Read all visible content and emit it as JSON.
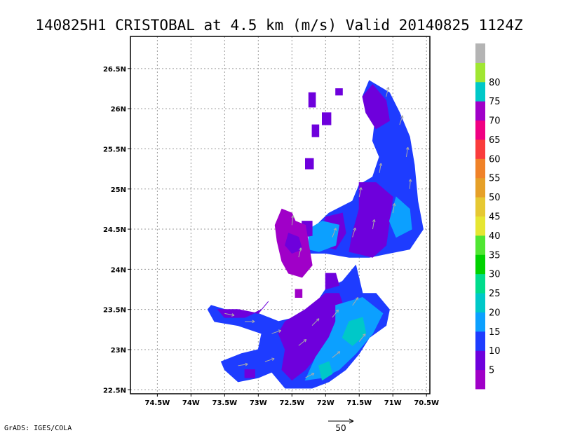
{
  "chart_data": {
    "type": "heatmap",
    "title": "140825H1 CRISTOBAL at 4.5 km (m/s) Valid 20140825 1124Z",
    "credit": "GrADS: IGES/COLA",
    "x_axis": {
      "range": [
        -74.9,
        -70.45
      ],
      "ticks": [
        {
          "value": -74.5,
          "label": "74.5W"
        },
        {
          "value": -74.0,
          "label": "74W"
        },
        {
          "value": -73.5,
          "label": "73.5W"
        },
        {
          "value": -73.0,
          "label": "73W"
        },
        {
          "value": -72.5,
          "label": "72.5W"
        },
        {
          "value": -72.0,
          "label": "72W"
        },
        {
          "value": -71.5,
          "label": "71.5W"
        },
        {
          "value": -71.0,
          "label": "71W"
        },
        {
          "value": -70.5,
          "label": "70.5W"
        }
      ]
    },
    "y_axis": {
      "range": [
        22.45,
        26.9
      ],
      "ticks": [
        {
          "value": 22.5,
          "label": "22.5N"
        },
        {
          "value": 23.0,
          "label": "23N"
        },
        {
          "value": 23.5,
          "label": "23.5N"
        },
        {
          "value": 24.0,
          "label": "24N"
        },
        {
          "value": 24.5,
          "label": "24.5N"
        },
        {
          "value": 25.0,
          "label": "25N"
        },
        {
          "value": 25.5,
          "label": "25.5N"
        },
        {
          "value": 26.0,
          "label": "26N"
        },
        {
          "value": 26.5,
          "label": "26.5N"
        }
      ]
    },
    "grid": true,
    "colorbar": {
      "colors": [
        "#a000c8",
        "#6e00dc",
        "#1e3cff",
        "#0ca0ff",
        "#00c8c8",
        "#00dc8c",
        "#00d200",
        "#50e632",
        "#e6e632",
        "#e6c832",
        "#e6a028",
        "#f08228",
        "#fa3c3c",
        "#f00082",
        "#a000c8",
        "#00c8c8",
        "#a0e632",
        "#b4b4b4"
      ],
      "labels": [
        "5",
        "10",
        "15",
        "20",
        "25",
        "30",
        "35",
        "40",
        "45",
        "50",
        "55",
        "60",
        "65",
        "70",
        "75",
        "80"
      ]
    },
    "reference_vector_label": "50",
    "regions": [
      {
        "name": "north-arc-outer",
        "level": 15,
        "pts": [
          [
            -71.35,
            26.35
          ],
          [
            -71.05,
            26.2
          ],
          [
            -70.9,
            25.95
          ],
          [
            -70.75,
            25.65
          ],
          [
            -70.68,
            25.3
          ],
          [
            -70.63,
            24.85
          ],
          [
            -70.55,
            24.5
          ],
          [
            -70.75,
            24.25
          ],
          [
            -71.05,
            24.2
          ],
          [
            -71.35,
            24.15
          ],
          [
            -71.65,
            24.15
          ],
          [
            -72.0,
            24.2
          ],
          [
            -72.25,
            24.2
          ],
          [
            -72.25,
            24.45
          ],
          [
            -72.05,
            24.62
          ],
          [
            -71.95,
            24.7
          ],
          [
            -71.6,
            24.85
          ],
          [
            -71.5,
            25.05
          ],
          [
            -71.3,
            25.15
          ],
          [
            -71.2,
            25.4
          ],
          [
            -71.3,
            25.6
          ],
          [
            -71.25,
            25.95
          ],
          [
            -71.45,
            26.15
          ]
        ]
      },
      {
        "name": "north-arc-inner",
        "level": 10,
        "pts": [
          [
            -71.3,
            26.3
          ],
          [
            -71.1,
            26.1
          ],
          [
            -71.05,
            25.85
          ],
          [
            -71.25,
            25.75
          ],
          [
            -71.4,
            25.95
          ],
          [
            -71.45,
            26.15
          ]
        ]
      },
      {
        "name": "north-core",
        "level": 10,
        "pts": [
          [
            -71.5,
            25.08
          ],
          [
            -71.25,
            25.08
          ],
          [
            -71.0,
            24.9
          ],
          [
            -71.05,
            24.6
          ],
          [
            -71.1,
            24.3
          ],
          [
            -71.3,
            24.15
          ],
          [
            -71.65,
            24.22
          ],
          [
            -71.6,
            24.45
          ],
          [
            -71.5,
            24.75
          ]
        ]
      },
      {
        "name": "north-core-2",
        "level": 10,
        "pts": [
          [
            -72.0,
            24.65
          ],
          [
            -71.75,
            24.7
          ],
          [
            -71.7,
            24.45
          ],
          [
            -71.85,
            24.25
          ],
          [
            -72.1,
            24.3
          ]
        ]
      },
      {
        "name": "north-teal",
        "level": 20,
        "pts": [
          [
            -72.25,
            24.5
          ],
          [
            -72.05,
            24.6
          ],
          [
            -71.8,
            24.55
          ],
          [
            -71.85,
            24.3
          ],
          [
            -72.1,
            24.22
          ],
          [
            -72.25,
            24.25
          ]
        ]
      },
      {
        "name": "north-teal-2",
        "level": 20,
        "pts": [
          [
            -70.95,
            24.9
          ],
          [
            -70.75,
            24.75
          ],
          [
            -70.72,
            24.5
          ],
          [
            -70.95,
            24.4
          ],
          [
            -71.05,
            24.6
          ]
        ]
      },
      {
        "name": "north-spur",
        "level": 10,
        "pts": [
          [
            -72.35,
            24.6
          ],
          [
            -72.2,
            24.6
          ],
          [
            -72.2,
            24.42
          ],
          [
            -72.35,
            24.4
          ]
        ]
      },
      {
        "name": "purple-blob",
        "level": 5,
        "pts": [
          [
            -72.65,
            24.75
          ],
          [
            -72.5,
            24.7
          ],
          [
            -72.45,
            24.6
          ],
          [
            -72.3,
            24.55
          ],
          [
            -72.25,
            24.3
          ],
          [
            -72.2,
            24.05
          ],
          [
            -72.35,
            23.9
          ],
          [
            -72.55,
            23.95
          ],
          [
            -72.65,
            24.1
          ],
          [
            -72.72,
            24.35
          ],
          [
            -72.75,
            24.55
          ]
        ]
      },
      {
        "name": "purple-inner",
        "level": 10,
        "pts": [
          [
            -72.55,
            24.45
          ],
          [
            -72.4,
            24.4
          ],
          [
            -72.35,
            24.25
          ],
          [
            -72.5,
            24.2
          ],
          [
            -72.6,
            24.3
          ]
        ]
      },
      {
        "name": "purple-tail",
        "level": 5,
        "pts": [
          [
            -72.45,
            23.65
          ],
          [
            -72.35,
            23.65
          ],
          [
            -72.35,
            23.75
          ],
          [
            -72.45,
            23.75
          ]
        ]
      },
      {
        "name": "island-1",
        "level": 10,
        "pts": [
          [
            -72.25,
            26.2
          ],
          [
            -72.15,
            26.2
          ],
          [
            -72.15,
            26.02
          ],
          [
            -72.25,
            26.02
          ]
        ]
      },
      {
        "name": "island-2",
        "level": 10,
        "pts": [
          [
            -71.85,
            26.25
          ],
          [
            -71.75,
            26.25
          ],
          [
            -71.75,
            26.17
          ],
          [
            -71.85,
            26.17
          ]
        ]
      },
      {
        "name": "island-3",
        "level": 10,
        "pts": [
          [
            -72.05,
            25.95
          ],
          [
            -71.92,
            25.95
          ],
          [
            -71.92,
            25.8
          ],
          [
            -72.05,
            25.8
          ]
        ]
      },
      {
        "name": "island-4",
        "level": 10,
        "pts": [
          [
            -72.2,
            25.8
          ],
          [
            -72.1,
            25.8
          ],
          [
            -72.1,
            25.65
          ],
          [
            -72.2,
            25.65
          ]
        ]
      },
      {
        "name": "island-5",
        "level": 10,
        "pts": [
          [
            -72.3,
            25.38
          ],
          [
            -72.18,
            25.38
          ],
          [
            -72.18,
            25.25
          ],
          [
            -72.3,
            25.25
          ]
        ]
      },
      {
        "name": "south-main",
        "level": 15,
        "pts": [
          [
            -73.7,
            23.55
          ],
          [
            -73.3,
            23.45
          ],
          [
            -73.0,
            23.45
          ],
          [
            -72.7,
            23.35
          ],
          [
            -72.45,
            23.4
          ],
          [
            -72.2,
            23.5
          ],
          [
            -72.0,
            23.75
          ],
          [
            -71.75,
            23.85
          ],
          [
            -71.55,
            24.05
          ],
          [
            -71.45,
            23.7
          ],
          [
            -71.25,
            23.7
          ],
          [
            -71.05,
            23.5
          ],
          [
            -71.1,
            23.3
          ],
          [
            -71.35,
            23.15
          ],
          [
            -71.5,
            22.95
          ],
          [
            -71.7,
            22.75
          ],
          [
            -71.95,
            22.6
          ],
          [
            -72.2,
            22.52
          ],
          [
            -72.6,
            22.52
          ],
          [
            -72.8,
            22.72
          ],
          [
            -73.0,
            22.65
          ],
          [
            -73.3,
            22.6
          ],
          [
            -73.5,
            22.75
          ],
          [
            -73.55,
            22.85
          ],
          [
            -73.25,
            22.95
          ],
          [
            -73.0,
            23.0
          ],
          [
            -72.95,
            23.2
          ],
          [
            -73.3,
            23.3
          ],
          [
            -73.65,
            23.35
          ],
          [
            -73.75,
            23.5
          ]
        ]
      },
      {
        "name": "south-blue",
        "level": 10,
        "pts": [
          [
            -72.6,
            23.35
          ],
          [
            -72.3,
            23.5
          ],
          [
            -72.0,
            23.7
          ],
          [
            -71.8,
            23.7
          ],
          [
            -71.7,
            23.45
          ],
          [
            -71.9,
            23.2
          ],
          [
            -72.1,
            22.95
          ],
          [
            -72.3,
            22.75
          ],
          [
            -72.5,
            22.62
          ],
          [
            -72.65,
            22.75
          ],
          [
            -72.6,
            23.0
          ],
          [
            -72.7,
            23.2
          ]
        ]
      },
      {
        "name": "south-teal",
        "level": 20,
        "pts": [
          [
            -71.85,
            23.55
          ],
          [
            -71.45,
            23.65
          ],
          [
            -71.15,
            23.45
          ],
          [
            -71.3,
            23.2
          ],
          [
            -71.55,
            22.95
          ],
          [
            -71.8,
            22.75
          ],
          [
            -72.05,
            22.65
          ],
          [
            -72.3,
            22.62
          ],
          [
            -72.15,
            22.9
          ],
          [
            -71.95,
            23.15
          ],
          [
            -71.85,
            23.35
          ]
        ]
      },
      {
        "name": "south-green",
        "level": 25,
        "pts": [
          [
            -71.65,
            23.35
          ],
          [
            -71.45,
            23.4
          ],
          [
            -71.4,
            23.2
          ],
          [
            -71.6,
            23.05
          ],
          [
            -71.75,
            23.15
          ]
        ]
      },
      {
        "name": "south-green-2",
        "level": 25,
        "pts": [
          [
            -72.1,
            22.8
          ],
          [
            -71.95,
            22.85
          ],
          [
            -71.9,
            22.7
          ],
          [
            -72.05,
            22.62
          ]
        ]
      },
      {
        "name": "south-blue-west",
        "level": 10,
        "pts": [
          [
            -73.6,
            23.5
          ],
          [
            -73.3,
            23.5
          ],
          [
            -73.0,
            23.45
          ],
          [
            -72.85,
            23.6
          ],
          [
            -72.95,
            23.5
          ],
          [
            -73.2,
            23.4
          ],
          [
            -73.5,
            23.4
          ]
        ]
      },
      {
        "name": "south-west-speck",
        "level": 10,
        "pts": [
          [
            -73.2,
            22.75
          ],
          [
            -73.05,
            22.75
          ],
          [
            -73.05,
            22.65
          ],
          [
            -73.2,
            22.65
          ]
        ]
      },
      {
        "name": "south-upper-blue",
        "level": 10,
        "pts": [
          [
            -72.0,
            23.95
          ],
          [
            -71.85,
            23.95
          ],
          [
            -71.8,
            23.8
          ],
          [
            -72.0,
            23.75
          ]
        ]
      }
    ],
    "vectors": [
      [
        -71.1,
        26.15,
        0.15,
        0.6
      ],
      [
        -70.9,
        25.8,
        0.2,
        0.6
      ],
      [
        -70.8,
        25.4,
        0.1,
        0.6
      ],
      [
        -70.75,
        25.0,
        0.05,
        0.6
      ],
      [
        -71.0,
        24.7,
        0.1,
        0.6
      ],
      [
        -71.3,
        24.5,
        0.1,
        0.6
      ],
      [
        -71.6,
        24.4,
        0.15,
        0.5
      ],
      [
        -71.9,
        24.4,
        0.2,
        0.5
      ],
      [
        -71.2,
        25.2,
        0.1,
        0.6
      ],
      [
        -71.5,
        24.9,
        0.1,
        0.5
      ],
      [
        -72.5,
        24.55,
        0.05,
        0.4
      ],
      [
        -72.4,
        24.15,
        0.1,
        0.4
      ],
      [
        -73.5,
        23.45,
        0.5,
        -0.1
      ],
      [
        -73.2,
        23.35,
        0.5,
        0.0
      ],
      [
        -73.3,
        22.8,
        0.6,
        0.1
      ],
      [
        -72.9,
        22.85,
        0.6,
        0.2
      ],
      [
        -72.8,
        23.2,
        0.6,
        0.2
      ],
      [
        -72.4,
        23.05,
        0.5,
        0.4
      ],
      [
        -72.2,
        23.3,
        0.45,
        0.45
      ],
      [
        -71.9,
        23.4,
        0.4,
        0.5
      ],
      [
        -71.6,
        23.55,
        0.35,
        0.5
      ],
      [
        -71.9,
        22.9,
        0.5,
        0.4
      ],
      [
        -72.3,
        22.65,
        0.6,
        0.3
      ],
      [
        -71.5,
        23.1,
        0.4,
        0.5
      ]
    ]
  }
}
